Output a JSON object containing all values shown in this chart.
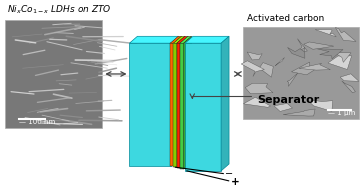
{
  "title_left": "Ni$_x$Co$_{1-x}$ LDHs on ZTO",
  "title_right": "Activated carbon",
  "separator_label": "Separator",
  "scale_left": "— 100 nm",
  "scale_right": "— 1 μm",
  "bg_color": "#ffffff",
  "cyan_color": "#3dd8e0",
  "cyan_top": "#7ae8ee",
  "cyan_side": "#1ab8c8",
  "layer_colors": [
    "#ff6600",
    "#88cc00",
    "#ff2200",
    "#44cc44"
  ],
  "arrow_color": "#444444",
  "font_size_title": 6.5,
  "font_size_sep": 8,
  "font_size_scale": 5
}
